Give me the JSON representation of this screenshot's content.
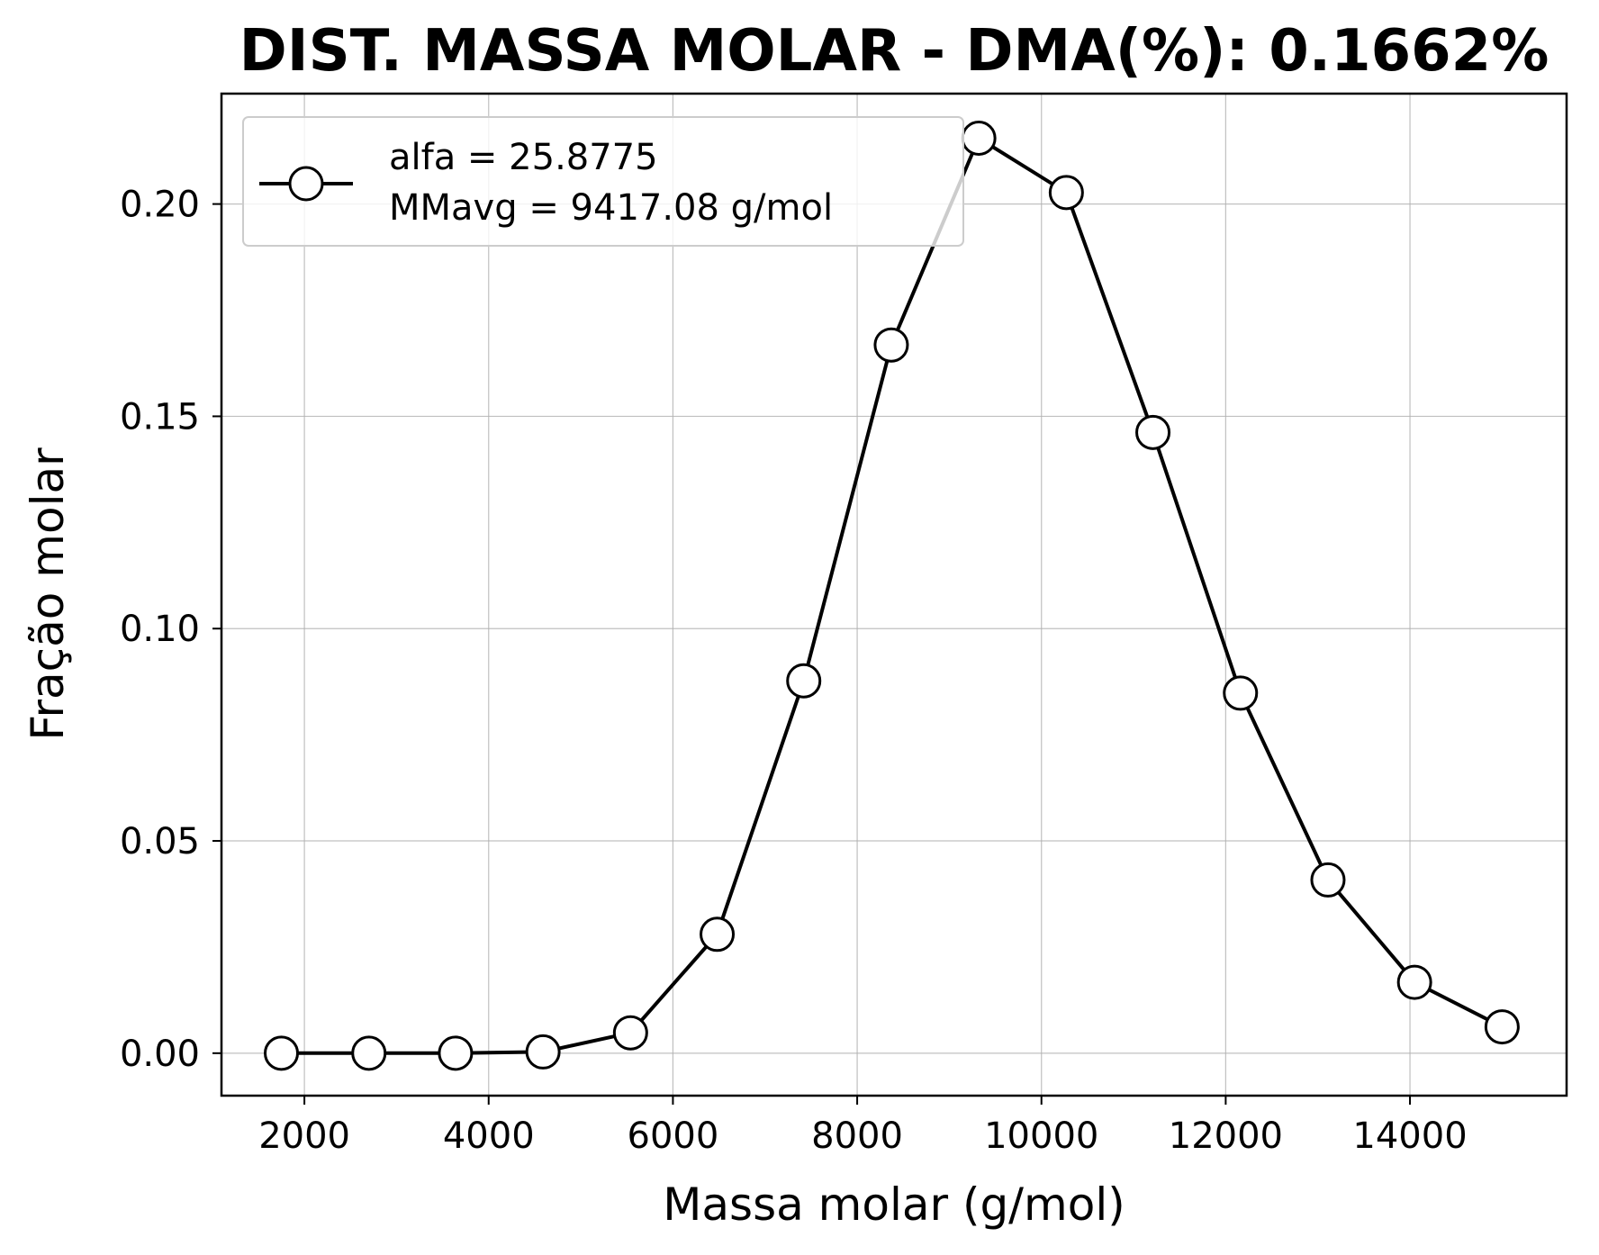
{
  "chart_data": {
    "type": "line",
    "title": "DIST. MASSA MOLAR - DMA(%): 0.1662%",
    "xlabel": "Massa molar (g/mol)",
    "ylabel": "Fração molar",
    "xlim": [
      1100,
      15700
    ],
    "ylim": [
      -0.01,
      0.226
    ],
    "xticks": [
      2000,
      4000,
      6000,
      8000,
      10000,
      12000,
      14000
    ],
    "xtick_labels": [
      "2000",
      "4000",
      "6000",
      "8000",
      "10000",
      "12000",
      "14000"
    ],
    "yticks": [
      0.0,
      0.05,
      0.1,
      0.15,
      0.2
    ],
    "ytick_labels": [
      "0.00",
      "0.05",
      "0.10",
      "0.15",
      "0.20"
    ],
    "grid": true,
    "legend_position": "top-left",
    "legend_lines": [
      "alfa = 25.8775",
      "MMavg = 9417.08 g/mol"
    ],
    "series_color": "#000000",
    "marker_face": "#ffffff",
    "series": [
      {
        "marker": "circle",
        "x": [
          1750,
          2700,
          3640,
          4590,
          5540,
          6480,
          7420,
          8370,
          9320,
          10270,
          11210,
          12160,
          13110,
          14050,
          15000
        ],
        "y": [
          0.0,
          0.0,
          0.0,
          0.0003,
          0.0048,
          0.028,
          0.0877,
          0.1668,
          0.2155,
          0.2027,
          0.1462,
          0.0848,
          0.0408,
          0.0167,
          0.0062
        ]
      }
    ]
  }
}
